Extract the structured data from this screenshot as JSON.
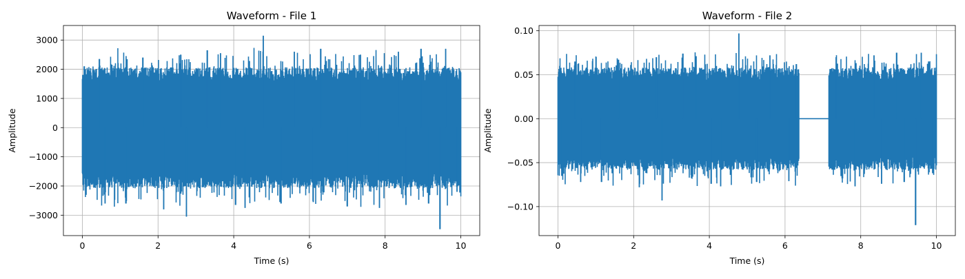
{
  "colors": {
    "series": "#1f77b4",
    "grid": "#b0b0b0",
    "axes": "#000000",
    "background": "#ffffff"
  },
  "chart_data": [
    {
      "type": "line",
      "title": "Waveform - File 1",
      "xlabel": "Time (s)",
      "ylabel": "Amplitude",
      "xlim": [
        -0.5,
        10.5
      ],
      "ylim": [
        -3700,
        3500
      ],
      "xticks": [
        0,
        2,
        4,
        6,
        8,
        10
      ],
      "yticks": [
        -3000,
        -2000,
        -1000,
        0,
        1000,
        2000,
        3000
      ],
      "xtick_labels": [
        "0",
        "2",
        "4",
        "6",
        "8",
        "10"
      ],
      "ytick_labels": [
        "−3000",
        "−2000",
        "−1000",
        "0",
        "1000",
        "2000",
        "3000"
      ],
      "grid": true,
      "duration": 10,
      "silent_segments": [],
      "envelope": {
        "typical_peak": 1850,
        "peaks": [
          {
            "x": 0.05,
            "y": 2100
          },
          {
            "x": 0.1,
            "y": -2300
          },
          {
            "x": 0.45,
            "y": 2350
          },
          {
            "x": 0.6,
            "y": -2600
          },
          {
            "x": 1.15,
            "y": -2600
          },
          {
            "x": 1.6,
            "y": 2400
          },
          {
            "x": 2.15,
            "y": -2800
          },
          {
            "x": 2.6,
            "y": 2500
          },
          {
            "x": 2.75,
            "y": -3050
          },
          {
            "x": 3.3,
            "y": 2650
          },
          {
            "x": 3.65,
            "y": 2550
          },
          {
            "x": 4.05,
            "y": -2650
          },
          {
            "x": 4.3,
            "y": -2750
          },
          {
            "x": 4.78,
            "y": 3150
          },
          {
            "x": 5.25,
            "y": -2600
          },
          {
            "x": 5.6,
            "y": 2600
          },
          {
            "x": 6.1,
            "y": -2550
          },
          {
            "x": 6.3,
            "y": 2700
          },
          {
            "x": 7.0,
            "y": -2700
          },
          {
            "x": 7.35,
            "y": 2500
          },
          {
            "x": 7.85,
            "y": -2750
          },
          {
            "x": 8.35,
            "y": 2600
          },
          {
            "x": 8.55,
            "y": -2650
          },
          {
            "x": 8.95,
            "y": 2700
          },
          {
            "x": 9.15,
            "y": -2600
          },
          {
            "x": 9.45,
            "y": -3480
          },
          {
            "x": 9.6,
            "y": 2700
          },
          {
            "x": 9.9,
            "y": -2200
          }
        ]
      }
    },
    {
      "type": "line",
      "title": "Waveform - File 2",
      "xlabel": "Time (s)",
      "ylabel": "Amplitude",
      "xlim": [
        -0.5,
        10.5
      ],
      "ylim": [
        -0.133,
        0.106
      ],
      "xticks": [
        0,
        2,
        4,
        6,
        8,
        10
      ],
      "yticks": [
        -0.1,
        -0.05,
        0.0,
        0.05,
        0.1
      ],
      "xtick_labels": [
        "0",
        "2",
        "4",
        "6",
        "8",
        "10"
      ],
      "ytick_labels": [
        "−0.10",
        "−0.05",
        "0.00",
        "0.05",
        "0.10"
      ],
      "grid": true,
      "duration": 10,
      "silent_segments": [
        [
          6.37,
          7.15
        ]
      ],
      "envelope": {
        "typical_peak": 0.052,
        "peaks": [
          {
            "x": 0.05,
            "y": 0.06
          },
          {
            "x": 0.1,
            "y": -0.065
          },
          {
            "x": 0.45,
            "y": 0.065
          },
          {
            "x": 0.6,
            "y": -0.072
          },
          {
            "x": 1.15,
            "y": -0.072
          },
          {
            "x": 1.6,
            "y": 0.067
          },
          {
            "x": 2.15,
            "y": -0.078
          },
          {
            "x": 2.6,
            "y": 0.07
          },
          {
            "x": 2.75,
            "y": -0.093
          },
          {
            "x": 3.3,
            "y": 0.074
          },
          {
            "x": 3.65,
            "y": 0.071
          },
          {
            "x": 4.05,
            "y": -0.074
          },
          {
            "x": 4.3,
            "y": -0.077
          },
          {
            "x": 4.78,
            "y": 0.097
          },
          {
            "x": 5.25,
            "y": -0.072
          },
          {
            "x": 5.6,
            "y": 0.072
          },
          {
            "x": 6.1,
            "y": -0.071
          },
          {
            "x": 6.3,
            "y": 0.062
          },
          {
            "x": 7.35,
            "y": 0.07
          },
          {
            "x": 7.85,
            "y": -0.077
          },
          {
            "x": 8.35,
            "y": 0.072
          },
          {
            "x": 8.55,
            "y": -0.074
          },
          {
            "x": 8.95,
            "y": 0.075
          },
          {
            "x": 9.15,
            "y": -0.072
          },
          {
            "x": 9.45,
            "y": -0.121
          },
          {
            "x": 9.6,
            "y": 0.075
          },
          {
            "x": 9.9,
            "y": -0.062
          }
        ]
      }
    }
  ]
}
